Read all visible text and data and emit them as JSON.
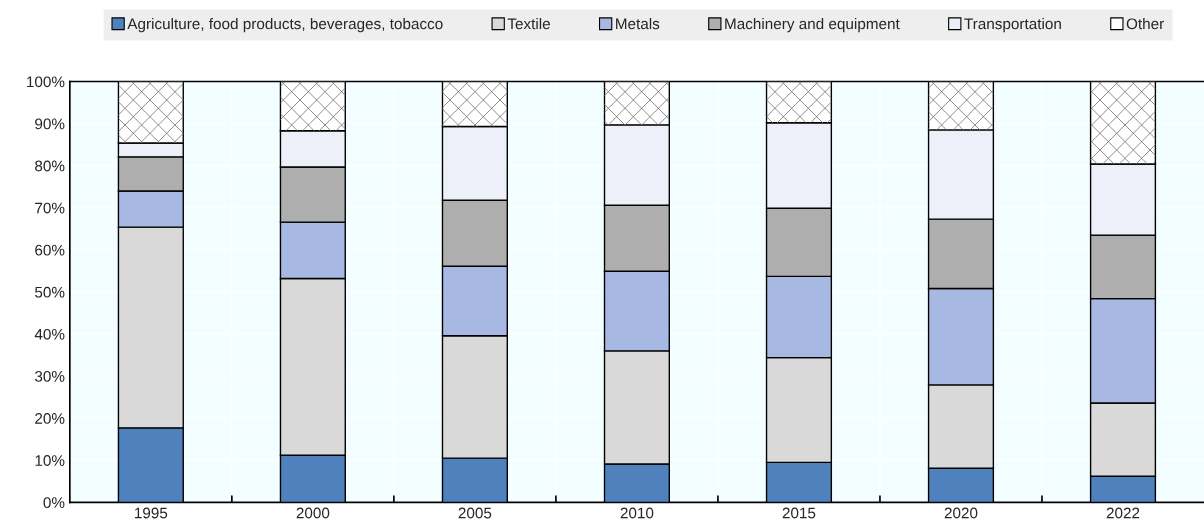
{
  "chart_data": {
    "type": "bar",
    "stacked": true,
    "categories": [
      "1995",
      "2000",
      "2005",
      "2010",
      "2015",
      "2020",
      "2022"
    ],
    "series": [
      {
        "name": "Agriculture, food products, beverages, tobacco",
        "color": "#4f81bd",
        "values": [
          17.7,
          11.2,
          10.5,
          9.1,
          9.5,
          8.1,
          6.2
        ]
      },
      {
        "name": "Textile",
        "color": "#d9d9d9",
        "values": [
          47.7,
          42.0,
          29.1,
          26.9,
          24.9,
          19.8,
          17.4
        ]
      },
      {
        "name": "Metals",
        "color": "#a7b8e2",
        "values": [
          8.6,
          13.4,
          16.5,
          18.9,
          19.3,
          22.9,
          24.8
        ]
      },
      {
        "name": "Machinery and equipment",
        "color": "#aeaeae",
        "values": [
          8.1,
          13.1,
          15.7,
          15.7,
          16.2,
          16.5,
          15.1
        ]
      },
      {
        "name": "Transportation",
        "color": "#edf0f8",
        "values": [
          3.3,
          8.6,
          17.5,
          19.1,
          20.3,
          21.2,
          16.9
        ]
      },
      {
        "name": "Other",
        "color": "#ffffff",
        "values": [
          14.6,
          11.7,
          10.7,
          10.3,
          9.8,
          11.5,
          19.6
        ]
      }
    ],
    "ylim": [
      0,
      100
    ],
    "yticks": [
      {
        "value": 0,
        "label": "0%"
      },
      {
        "value": 10,
        "label": "10%"
      },
      {
        "value": 20,
        "label": "20%"
      },
      {
        "value": 30,
        "label": "30%"
      },
      {
        "value": 40,
        "label": "40%"
      },
      {
        "value": 50,
        "label": "50%"
      },
      {
        "value": 60,
        "label": "60%"
      },
      {
        "value": 70,
        "label": "70%"
      },
      {
        "value": 80,
        "label": "80%"
      },
      {
        "value": 90,
        "label": "90%"
      },
      {
        "value": 100,
        "label": "100%"
      }
    ],
    "grid": "y",
    "legend": "top"
  }
}
